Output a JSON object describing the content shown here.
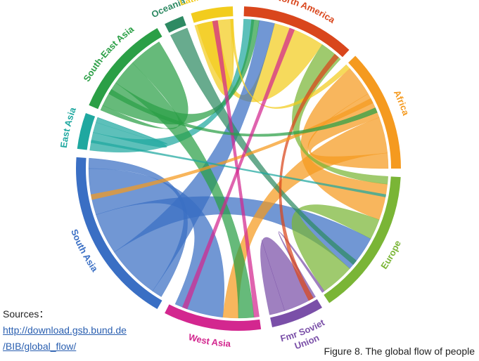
{
  "figure": {
    "caption": "Figure 8. The global flow of people",
    "sources_label": "Sources：",
    "source_link_line1": "http://download.gsb.bund.de",
    "source_link_line2": "/BIB/global_flow/"
  },
  "regions": [
    {
      "id": "north-america",
      "label": "North America",
      "color": "#d9461c"
    },
    {
      "id": "africa",
      "label": "Africa",
      "color": "#f59a1f"
    },
    {
      "id": "europe",
      "label": "Europe",
      "color": "#7ab536"
    },
    {
      "id": "fmr-soviet-union",
      "label": "Fmr Soviet Union",
      "label_lines": [
        "Fmr Soviet",
        "Union"
      ],
      "color": "#7a4fa8"
    },
    {
      "id": "west-asia",
      "label": "West Asia",
      "color": "#d3278f"
    },
    {
      "id": "south-asia",
      "label": "South Asia",
      "color": "#3a6fc4"
    },
    {
      "id": "east-asia",
      "label": "East Asia",
      "color": "#1fa8a0"
    },
    {
      "id": "south-east-asia",
      "label": "South-East Asia",
      "color": "#2b9f46"
    },
    {
      "id": "oceania",
      "label": "Oceania",
      "color": "#2e8a63"
    },
    {
      "id": "latin-america",
      "label": "Latin America",
      "color": "#f2cc1d"
    }
  ]
}
